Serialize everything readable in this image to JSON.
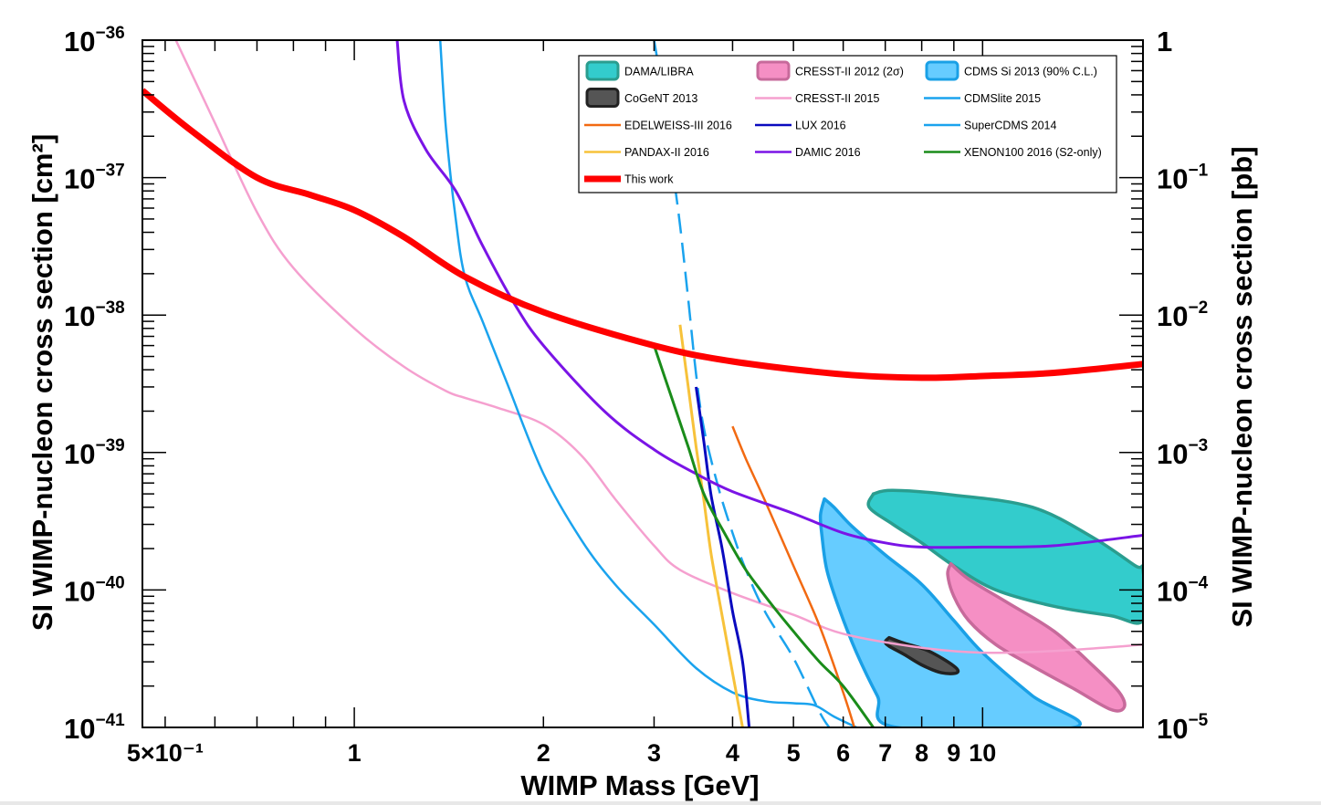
{
  "colors": {
    "dama": "#33cccc",
    "dama_edge": "#2a9d8f",
    "cresst2012": "#f58fc4",
    "cresst2012_edge": "#c76a9b",
    "cdms_si": "#66ccff",
    "cdms_si_edge": "#1aa0e6",
    "cogent": "#555555",
    "cogent_edge": "#222222",
    "cresst2015": "#f5a0cf",
    "cdmslite": "#1aa3ee",
    "supercdms": "#1aa3ee",
    "edelweiss": "#f26a12",
    "lux": "#0a0abf",
    "pandax": "#f7c23a",
    "damic": "#7a14e6",
    "xenon100": "#1a8c1a",
    "thiswork": "#ff0000"
  },
  "chart_data": {
    "type": "line",
    "xlabel": "WIMP Mass [GeV]",
    "ylabel": "SI WIMP-nucleon cross section [cm²]",
    "ylabel_right": "SI WIMP-nucleon cross section [pb]",
    "xscale": "log",
    "yscale": "log",
    "xlim": [
      0.46,
      18
    ],
    "ylim": [
      1e-41,
      1e-36
    ],
    "legend_position": "top-right",
    "x_tick_labels": [
      {
        "value": 0.5,
        "label": "5×10⁻¹"
      },
      {
        "value": 1,
        "label": "1"
      },
      {
        "value": 2,
        "label": "2"
      },
      {
        "value": 3,
        "label": "3"
      },
      {
        "value": 4,
        "label": "4"
      },
      {
        "value": 5,
        "label": "5"
      },
      {
        "value": 6,
        "label": "6"
      },
      {
        "value": 7,
        "label": "7"
      },
      {
        "value": 8,
        "label": "8"
      },
      {
        "value": 9,
        "label": "9"
      },
      {
        "value": 10,
        "label": "10"
      }
    ],
    "y_tick_labels_left": [
      {
        "value": 1e-41,
        "mantissa": "10",
        "exp": "−41"
      },
      {
        "value": 1e-40,
        "mantissa": "10",
        "exp": "−40"
      },
      {
        "value": 1e-39,
        "mantissa": "10",
        "exp": "−39"
      },
      {
        "value": 1e-38,
        "mantissa": "10",
        "exp": "−38"
      },
      {
        "value": 1e-37,
        "mantissa": "10",
        "exp": "−37"
      },
      {
        "value": 1e-36,
        "mantissa": "10",
        "exp": "−36"
      }
    ],
    "y_tick_labels_right": [
      {
        "value": 1e-41,
        "mantissa": "10",
        "exp": "−5"
      },
      {
        "value": 1e-40,
        "mantissa": "10",
        "exp": "−4"
      },
      {
        "value": 1e-39,
        "mantissa": "10",
        "exp": "−3"
      },
      {
        "value": 1e-38,
        "mantissa": "10",
        "exp": "−2"
      },
      {
        "value": 1e-37,
        "mantissa": "10",
        "exp": "−1"
      },
      {
        "value": 1e-36,
        "mantissa": "1",
        "exp": ""
      }
    ],
    "legend": [
      {
        "key": "dama",
        "label": "DAMA/LIBRA",
        "kind": "region"
      },
      {
        "key": "cresst2012",
        "label": "CRESST-II 2012 (2σ)",
        "kind": "region"
      },
      {
        "key": "cdms_si",
        "label": "CDMS Si 2013 (90% C.L.)",
        "kind": "region"
      },
      {
        "key": "cogent",
        "label": "CoGeNT 2013",
        "kind": "region"
      },
      {
        "key": "cresst2015",
        "label": "CRESST-II 2015",
        "kind": "line"
      },
      {
        "key": "cdmslite",
        "label": "CDMSlite 2015",
        "kind": "line"
      },
      {
        "key": "edelweiss",
        "label": "EDELWEISS-III 2016",
        "kind": "line"
      },
      {
        "key": "lux",
        "label": "LUX 2016",
        "kind": "line"
      },
      {
        "key": "supercdms",
        "label": "SuperCDMS 2014",
        "kind": "line"
      },
      {
        "key": "pandax",
        "label": "PANDAX-II 2016",
        "kind": "line"
      },
      {
        "key": "damic",
        "label": "DAMIC 2016",
        "kind": "line"
      },
      {
        "key": "xenon100",
        "label": "XENON100 2016 (S2-only)",
        "kind": "line"
      },
      {
        "key": "thiswork",
        "label": "This work",
        "kind": "thick"
      }
    ],
    "series": [
      {
        "key": "cresst2015",
        "name": "CRESST-II 2015",
        "style": "solid",
        "width": 2.5,
        "points": [
          [
            0.52,
            1e-36
          ],
          [
            0.6,
            2.5e-37
          ],
          [
            0.7,
            5.6e-38
          ],
          [
            0.8,
            2.2e-38
          ],
          [
            1.0,
            8e-39
          ],
          [
            1.2,
            4.2e-39
          ],
          [
            1.4,
            2.8e-39
          ],
          [
            1.5,
            2.5e-39
          ],
          [
            1.7,
            2.1e-39
          ],
          [
            2.0,
            1.6e-39
          ],
          [
            2.3,
            9.5e-40
          ],
          [
            2.6,
            4.6e-40
          ],
          [
            3.0,
            2.1e-40
          ],
          [
            3.3,
            1.4e-40
          ],
          [
            4.0,
            9.5e-41
          ],
          [
            5.0,
            6.6e-41
          ],
          [
            6.0,
            4.8e-41
          ],
          [
            8.0,
            3.8e-41
          ],
          [
            10.0,
            3.5e-41
          ],
          [
            13.0,
            3.6e-41
          ],
          [
            18.0,
            4e-41
          ]
        ]
      },
      {
        "key": "cdmslite",
        "name": "CDMSlite 2015",
        "style": "solid",
        "width": 2.5,
        "points": [
          [
            1.37,
            1e-36
          ],
          [
            1.4,
            2.2e-37
          ],
          [
            1.45,
            5e-38
          ],
          [
            1.5,
            1.9e-38
          ],
          [
            1.6,
            9e-39
          ],
          [
            1.75,
            3.2e-39
          ],
          [
            2.0,
            7e-40
          ],
          [
            2.3,
            2.3e-40
          ],
          [
            2.6,
            1.1e-40
          ],
          [
            3.0,
            5.6e-41
          ],
          [
            3.5,
            2.7e-41
          ],
          [
            4.0,
            1.8e-41
          ],
          [
            4.5,
            1.55e-41
          ],
          [
            5.0,
            1.5e-41
          ],
          [
            5.4,
            1.45e-41
          ],
          [
            5.8,
            1.2e-41
          ],
          [
            6.3,
            1e-41
          ]
        ]
      },
      {
        "key": "supercdms",
        "name": "SuperCDMS 2014",
        "style": "dashed",
        "width": 2.5,
        "points": [
          [
            3.0,
            1e-36
          ],
          [
            3.1,
            4e-37
          ],
          [
            3.2,
            1.3e-37
          ],
          [
            3.3,
            4.5e-38
          ],
          [
            3.4,
            1.3e-38
          ],
          [
            3.5,
            3.7e-39
          ],
          [
            3.6,
            1.5e-39
          ],
          [
            3.8,
            5.5e-40
          ],
          [
            4.0,
            2.6e-40
          ],
          [
            4.2,
            1.4e-40
          ],
          [
            4.5,
            7e-41
          ],
          [
            5.0,
            3.2e-41
          ],
          [
            5.5,
            1.3e-41
          ],
          [
            5.7,
            1e-41
          ]
        ]
      },
      {
        "key": "edelweiss",
        "name": "EDELWEISS-III 2016",
        "style": "solid",
        "width": 2.5,
        "points": [
          [
            4.0,
            1.55e-39
          ],
          [
            4.2,
            9e-40
          ],
          [
            4.5,
            4.5e-40
          ],
          [
            5.0,
            1.5e-40
          ],
          [
            5.5,
            5.5e-41
          ],
          [
            6.0,
            1.8e-41
          ],
          [
            6.25,
            1e-41
          ]
        ]
      },
      {
        "key": "pandax",
        "name": "PANDAX-II 2016",
        "style": "solid",
        "width": 3,
        "points": [
          [
            3.3,
            8.5e-39
          ],
          [
            3.4,
            3e-39
          ],
          [
            3.5,
            1.1e-39
          ],
          [
            3.6,
            4.5e-40
          ],
          [
            3.7,
            1.8e-40
          ],
          [
            3.85,
            6.5e-41
          ],
          [
            4.0,
            2.5e-41
          ],
          [
            4.15,
            1e-41
          ]
        ]
      },
      {
        "key": "lux",
        "name": "LUX 2016",
        "style": "solid",
        "width": 3,
        "points": [
          [
            3.5,
            3e-39
          ],
          [
            3.6,
            1.2e-39
          ],
          [
            3.7,
            4.8e-40
          ],
          [
            3.85,
            2e-40
          ],
          [
            4.0,
            7e-41
          ],
          [
            4.15,
            3e-41
          ],
          [
            4.25,
            1e-41
          ]
        ]
      },
      {
        "key": "damic",
        "name": "DAMIC 2016",
        "style": "solid",
        "width": 3,
        "points": [
          [
            1.17,
            1e-36
          ],
          [
            1.2,
            3.6e-37
          ],
          [
            1.3,
            1.6e-37
          ],
          [
            1.45,
            8e-38
          ],
          [
            1.6,
            3.2e-38
          ],
          [
            1.8,
            1.2e-38
          ],
          [
            2.0,
            6e-39
          ],
          [
            2.5,
            2e-39
          ],
          [
            3.0,
            1.05e-39
          ],
          [
            3.5,
            7e-40
          ],
          [
            4.0,
            5.2e-40
          ],
          [
            5.0,
            3.6e-40
          ],
          [
            6.0,
            2.6e-40
          ],
          [
            7.0,
            2.2e-40
          ],
          [
            8.0,
            2.05e-40
          ],
          [
            10.0,
            2.05e-40
          ],
          [
            13.0,
            2.1e-40
          ],
          [
            18.0,
            2.5e-40
          ]
        ]
      },
      {
        "key": "xenon100",
        "name": "XENON100 2016 (S2-only)",
        "style": "solid",
        "width": 3,
        "points": [
          [
            3.0,
            6e-39
          ],
          [
            3.2,
            2.5e-39
          ],
          [
            3.4,
            1.1e-39
          ],
          [
            3.6,
            5e-40
          ],
          [
            3.9,
            2.5e-40
          ],
          [
            4.2,
            1.4e-40
          ],
          [
            4.6,
            8e-41
          ],
          [
            5.0,
            5e-41
          ],
          [
            5.5,
            3e-41
          ],
          [
            6.0,
            2e-41
          ],
          [
            6.7,
            1e-41
          ]
        ]
      },
      {
        "key": "thiswork",
        "name": "This work",
        "style": "solid",
        "width": 7,
        "points": [
          [
            0.46,
            4.3e-37
          ],
          [
            0.55,
            2.2e-37
          ],
          [
            0.7,
            1e-37
          ],
          [
            0.85,
            7.5e-38
          ],
          [
            1.0,
            5.8e-38
          ],
          [
            1.2,
            3.7e-38
          ],
          [
            1.5,
            1.9e-38
          ],
          [
            2.0,
            1.05e-38
          ],
          [
            3.0,
            6e-39
          ],
          [
            4.0,
            4.6e-39
          ],
          [
            6.0,
            3.7e-39
          ],
          [
            8.0,
            3.5e-39
          ],
          [
            10.0,
            3.6e-39
          ],
          [
            13.0,
            3.8e-39
          ],
          [
            18.0,
            4.4e-39
          ]
        ]
      }
    ],
    "regions": [
      {
        "key": "dama",
        "name": "DAMA/LIBRA",
        "points": [
          [
            6.7,
            5e-40
          ],
          [
            7.2,
            5.3e-40
          ],
          [
            9.0,
            4.9e-40
          ],
          [
            12.0,
            4e-40
          ],
          [
            15.0,
            2.4e-40
          ],
          [
            17.5,
            1.5e-40
          ],
          [
            18,
            1.4e-40
          ],
          [
            18,
            6e-41
          ],
          [
            16.0,
            6.5e-41
          ],
          [
            13.0,
            7.6e-41
          ],
          [
            10.5,
            1e-40
          ],
          [
            9.0,
            1.5e-40
          ],
          [
            8.0,
            2.2e-40
          ],
          [
            7.2,
            3e-40
          ],
          [
            6.6,
            4e-40
          ]
        ]
      },
      {
        "key": "cdms_si",
        "name": "CDMS Si 2013 (90% C.L.)",
        "points": [
          [
            5.6,
            4.6e-40
          ],
          [
            5.8,
            4e-40
          ],
          [
            6.2,
            2.9e-40
          ],
          [
            7.0,
            1.8e-40
          ],
          [
            8.0,
            1.1e-40
          ],
          [
            9.0,
            6e-41
          ],
          [
            10.0,
            3.5e-41
          ],
          [
            12.0,
            1.7e-41
          ],
          [
            14.0,
            1e-41
          ],
          [
            7.3,
            1e-41
          ],
          [
            6.8,
            1.7e-41
          ],
          [
            6.3,
            3.5e-41
          ],
          [
            5.9,
            7.5e-41
          ],
          [
            5.65,
            1.4e-40
          ],
          [
            5.55,
            2.5e-40
          ],
          [
            5.52,
            3.5e-40
          ]
        ]
      },
      {
        "key": "cresst2012",
        "name": "CRESST-II 2012 (2σ)",
        "points": [
          [
            8.9,
            1.55e-40
          ],
          [
            9.5,
            1.2e-40
          ],
          [
            11.0,
            8e-41
          ],
          [
            13.0,
            5e-41
          ],
          [
            15.0,
            2.8e-41
          ],
          [
            16.5,
            1.8e-41
          ],
          [
            16.8,
            1.4e-41
          ],
          [
            16.0,
            1.35e-41
          ],
          [
            14.0,
            1.9e-41
          ],
          [
            12.0,
            2.8e-41
          ],
          [
            10.5,
            4e-41
          ],
          [
            9.5,
            6e-41
          ],
          [
            9.0,
            9e-41
          ],
          [
            8.8,
            1.3e-40
          ]
        ]
      },
      {
        "key": "cogent",
        "name": "CoGeNT 2013",
        "points": [
          [
            7.1,
            4.5e-41
          ],
          [
            7.5,
            4.1e-41
          ],
          [
            8.2,
            3.6e-41
          ],
          [
            9.0,
            2.8e-41
          ],
          [
            9.1,
            2.5e-41
          ],
          [
            8.6,
            2.5e-41
          ],
          [
            8.0,
            2.85e-41
          ],
          [
            7.5,
            3.4e-41
          ],
          [
            7.1,
            3.9e-41
          ],
          [
            7.0,
            4.2e-41
          ]
        ]
      }
    ]
  }
}
